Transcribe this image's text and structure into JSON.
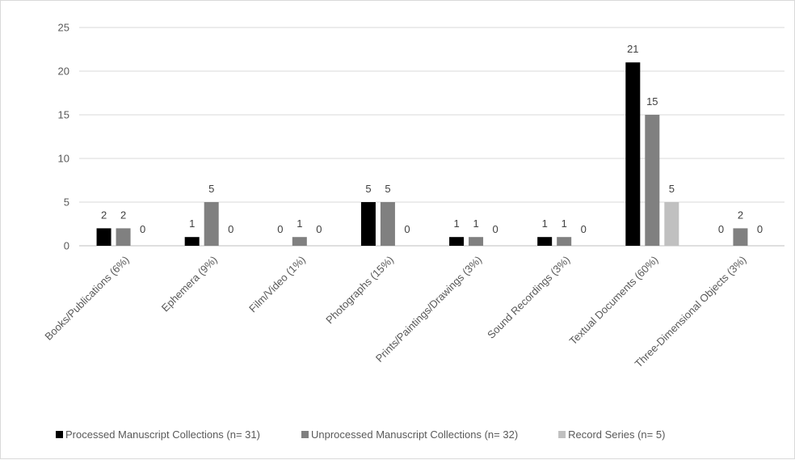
{
  "chart_data": {
    "type": "bar",
    "title": "",
    "xlabel": "",
    "ylabel": "",
    "ylim": [
      0,
      25
    ],
    "yticks": [
      0,
      5,
      10,
      15,
      20,
      25
    ],
    "grid": true,
    "legend_position": "bottom",
    "categories": [
      "Books/Publications (6%)",
      "Ephemera (9%)",
      "Film/Video (1%)",
      "Photographs (15%)",
      "Prints/Paintings/Drawings (3%)",
      "Sound Recordings (3%)",
      "Textual Documents (60%)",
      "Three-Dimensional Objects (3%)"
    ],
    "series": [
      {
        "name": "Processed Manuscript Collections (n= 31)",
        "color": "#000000",
        "values": [
          2,
          1,
          0,
          5,
          1,
          1,
          21,
          0
        ]
      },
      {
        "name": "Unprocessed Manuscript Collections (n= 32)",
        "color": "#808080",
        "values": [
          2,
          5,
          1,
          5,
          1,
          1,
          15,
          2
        ]
      },
      {
        "name": "Record Series (n= 5)",
        "color": "#c0c0c0",
        "values": [
          0,
          0,
          0,
          0,
          0,
          0,
          5,
          0
        ]
      }
    ]
  }
}
